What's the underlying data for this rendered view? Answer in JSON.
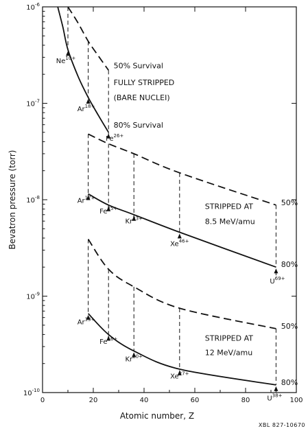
{
  "chart_data": {
    "type": "line",
    "title": "",
    "xlabel": "Atomic number, Z",
    "ylabel": "Bevatron pressure (torr)",
    "xlim": [
      0,
      100
    ],
    "ylim": [
      1e-10,
      1e-06
    ],
    "yscale": "log",
    "x_ticks": [
      0,
      20,
      40,
      60,
      80,
      100
    ],
    "y_ticks": [
      {
        "value": 1e-10,
        "base": "10",
        "exp": "-10"
      },
      {
        "value": 1e-09,
        "base": "10",
        "exp": "-9"
      },
      {
        "value": 1e-08,
        "base": "10",
        "exp": "-8"
      },
      {
        "value": 1e-07,
        "base": "10",
        "exp": "-7"
      },
      {
        "value": 1e-06,
        "base": "10",
        "exp": "-6"
      }
    ],
    "grid": false,
    "series": [
      {
        "name": "80% Survival",
        "group": "fully-stripped",
        "style": "solid",
        "x": [
          6,
          8,
          10,
          14,
          18,
          22,
          26
        ],
        "y": [
          1e-06,
          6.2e-07,
          3.6e-07,
          1.9e-07,
          1.15e-07,
          7.5e-08,
          5e-08
        ]
      },
      {
        "name": "50% Survival",
        "group": "fully-stripped",
        "style": "dashed",
        "x": [
          10,
          14,
          18,
          22,
          26
        ],
        "y": [
          1e-06,
          6.8e-07,
          4.4e-07,
          3.1e-07,
          2.2e-07
        ]
      },
      {
        "name": "80%",
        "group": "8.5 MeV",
        "style": "solid",
        "x": [
          18,
          26,
          36,
          54,
          92
        ],
        "y": [
          1.15e-08,
          8.8e-09,
          7e-09,
          4.6e-09,
          2e-09
        ]
      },
      {
        "name": "50%",
        "group": "8.5 MeV",
        "style": "dashed",
        "x": [
          18,
          26,
          36,
          54,
          92
        ],
        "y": [
          4.8e-08,
          3.8e-08,
          3e-08,
          1.9e-08,
          8.8e-09
        ]
      },
      {
        "name": "80%",
        "group": "12 MeV",
        "style": "solid",
        "x": [
          18,
          26,
          36,
          54,
          92
        ],
        "y": [
          6.6e-10,
          4e-10,
          2.7e-10,
          1.75e-10,
          1.2e-10
        ]
      },
      {
        "name": "50%",
        "group": "12 MeV",
        "style": "dashed",
        "x": [
          18,
          26,
          36,
          54,
          92
        ],
        "y": [
          3.9e-09,
          1.9e-09,
          1.25e-09,
          7.5e-10,
          4.6e-10
        ]
      }
    ],
    "annotations": [
      {
        "text": "FULLY STRIPPED",
        "x": 28,
        "y": 1.55e-07
      },
      {
        "text": "(BARE NUCLEI)",
        "x": 28,
        "y": 1.08e-07
      },
      {
        "text": "50% Survival",
        "x": 28,
        "y": 2.3e-07
      },
      {
        "text": "80% Survival",
        "x": 28,
        "y": 5.6e-08
      },
      {
        "text": "STRIPPED AT",
        "x": 64,
        "y": 8e-09
      },
      {
        "text": "8.5 MeV/amu",
        "x": 64,
        "y": 5.6e-09
      },
      {
        "text": "STRIPPED AT",
        "x": 64,
        "y": 3.45e-10
      },
      {
        "text": "12 MeV/amu",
        "x": 64,
        "y": 2.45e-10
      },
      {
        "text": "50%",
        "x": 94,
        "y": 8.8e-09
      },
      {
        "text": "80%",
        "x": 94,
        "y": 2e-09
      },
      {
        "text": "50%",
        "x": 94,
        "y": 4.6e-10
      },
      {
        "text": "80%",
        "x": 94,
        "y": 1.2e-10
      }
    ],
    "ion_markers": [
      {
        "symbol": "Ne",
        "charge": "10+",
        "x": 10,
        "y_from": 1e-06,
        "y_to": 3.6e-07,
        "label_y": 2.6e-07,
        "label_dx": -3
      },
      {
        "symbol": "Ar",
        "charge": "18+",
        "x": 18,
        "y_from": 4.4e-07,
        "y_to": 1.15e-07,
        "label_y": 8.3e-08,
        "label_dx": -3
      },
      {
        "symbol": "Fe",
        "charge": "26+",
        "x": 26,
        "y_from": 2.2e-07,
        "y_to": 5e-08,
        "label_y": 4.1e-08,
        "label_dx": 9
      },
      {
        "symbol": "Ar",
        "charge": "17+",
        "x": 18,
        "y_from": 4.8e-08,
        "y_to": 1.15e-08,
        "label_y": 9.3e-09,
        "label_dx": -3
      },
      {
        "symbol": "Fe",
        "charge": "25+",
        "x": 26,
        "y_from": 3.8e-08,
        "y_to": 8.8e-09,
        "label_y": 7.2e-09,
        "label_dx": 0
      },
      {
        "symbol": "Kr",
        "charge": "33+",
        "x": 36,
        "y_from": 3e-08,
        "y_to": 7e-09,
        "label_y": 5.7e-09,
        "label_dx": 0
      },
      {
        "symbol": "Xe",
        "charge": "46+",
        "x": 54,
        "y_from": 1.9e-08,
        "y_to": 4.6e-09,
        "label_y": 3.3e-09,
        "label_dx": 0
      },
      {
        "symbol": "U",
        "charge": "69+",
        "x": 92,
        "y_from": 8.8e-09,
        "y_to": 2e-09,
        "label_y": 1.35e-09,
        "label_dx": 2
      },
      {
        "symbol": "Ar",
        "charge": "13+",
        "x": 18,
        "y_from": 3.9e-09,
        "y_to": 6.6e-10,
        "label_y": 5.1e-10,
        "label_dx": -3
      },
      {
        "symbol": "Fe",
        "charge": "16+",
        "x": 26,
        "y_from": 1.9e-09,
        "y_to": 4e-10,
        "label_y": 3.2e-10,
        "label_dx": 0
      },
      {
        "symbol": "Kr",
        "charge": "20+",
        "x": 36,
        "y_from": 1.25e-09,
        "y_to": 2.7e-10,
        "label_y": 2.1e-10,
        "label_dx": 0
      },
      {
        "symbol": "Xe",
        "charge": "27+",
        "x": 54,
        "y_from": 7.5e-10,
        "y_to": 1.75e-10,
        "label_y": 1.4e-10,
        "label_dx": 0
      },
      {
        "symbol": "U",
        "charge": "38+",
        "x": 92,
        "y_from": 4.6e-10,
        "y_to": 1.2e-10,
        "label_y": 8.3e-11,
        "label_dx": -2
      }
    ],
    "reference": "XBL 827-10670"
  }
}
